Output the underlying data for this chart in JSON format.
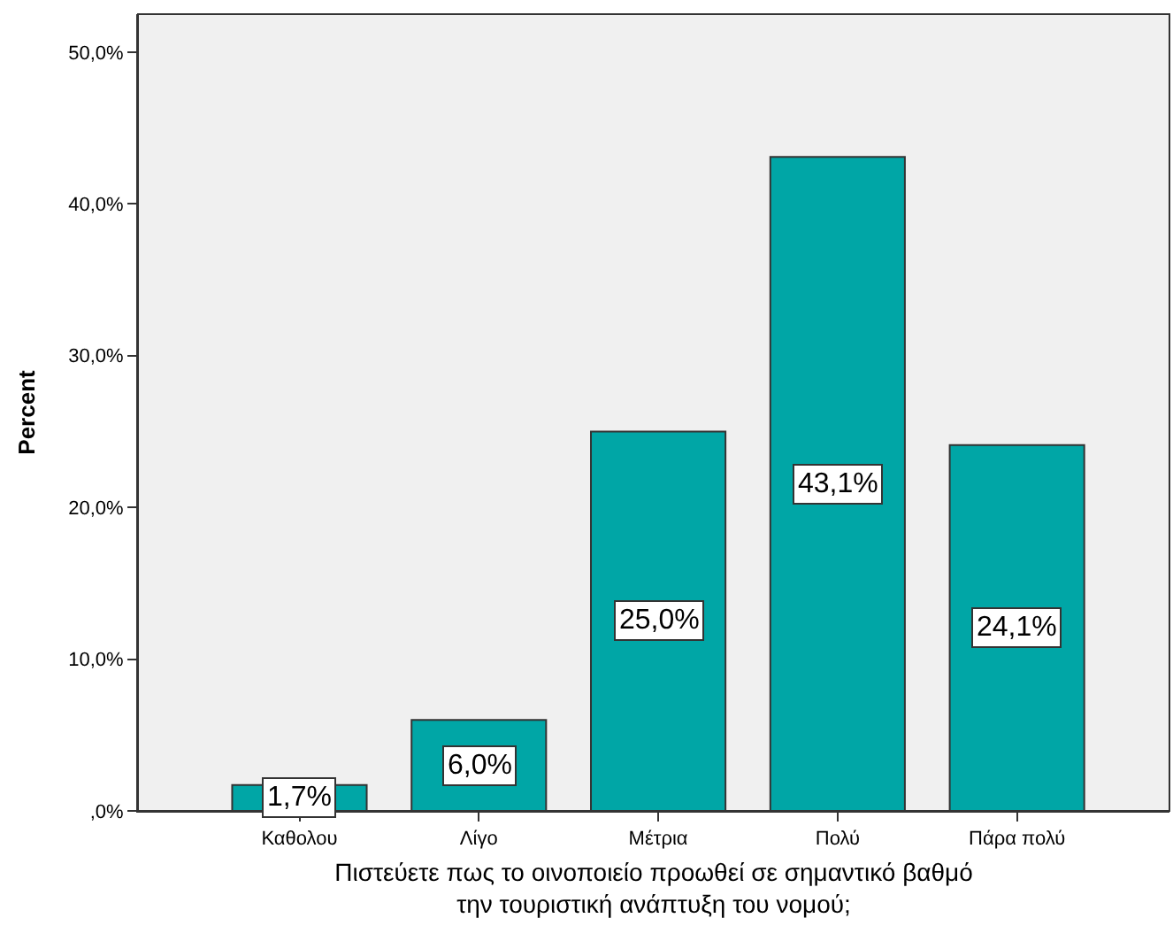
{
  "chart_data": {
    "type": "bar",
    "ylabel": "Percent",
    "xlabel": "Πιστεύετε πως το οινοποιείο προωθεί σε σημαντικό βαθμό\nτην τουριστική ανάπτυξη του νομού;",
    "categories": [
      "Καθολου",
      "Λίγο",
      "Μέτρια",
      "Πολύ",
      "Πάρα πολύ"
    ],
    "values": [
      1.7,
      6.0,
      25.0,
      43.1,
      24.1
    ],
    "value_labels": [
      "1,7%",
      "6,0%",
      "25,0%",
      "43,1%",
      "24,1%"
    ],
    "color": "#00a6a6",
    "ylim": [
      0,
      52.5
    ],
    "yticks": [
      {
        "value": 0,
        "label": ",0%"
      },
      {
        "value": 10,
        "label": "10,0%"
      },
      {
        "value": 20,
        "label": "20,0%"
      },
      {
        "value": 30,
        "label": "30,0%"
      },
      {
        "value": 40,
        "label": "40,0%"
      },
      {
        "value": 50,
        "label": "50,0%"
      }
    ],
    "grid": false,
    "legend": false
  }
}
